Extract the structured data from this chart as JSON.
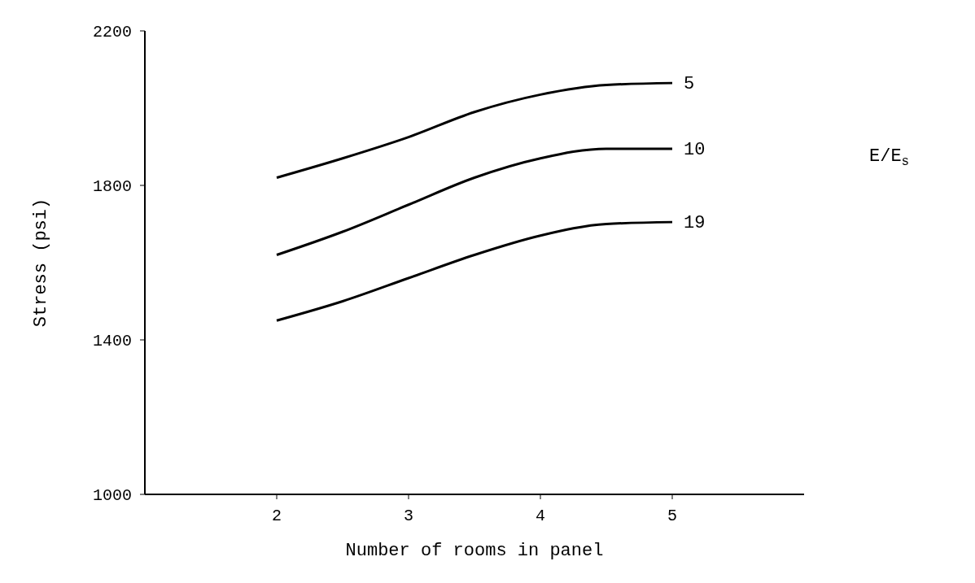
{
  "chart_data": {
    "type": "line",
    "xlabel": "Number of rooms in panel",
    "ylabel": "Stress (psi)",
    "legend_title": "E/E$_{s}$",
    "x": [
      2,
      2.5,
      3,
      3.5,
      4,
      4.5,
      5
    ],
    "series": [
      {
        "name": "5",
        "color": "#000000",
        "values": [
          1820,
          1870,
          1925,
          1990,
          2035,
          2060,
          2065
        ]
      },
      {
        "name": "10",
        "color": "#000000",
        "values": [
          1620,
          1680,
          1750,
          1820,
          1870,
          1895,
          1895
        ]
      },
      {
        "name": "19",
        "color": "#000000",
        "values": [
          1450,
          1500,
          1560,
          1620,
          1670,
          1700,
          1705
        ]
      }
    ],
    "xlim": [
      1,
      6
    ],
    "xticks": [
      2,
      3,
      4,
      5
    ],
    "ylim": [
      1000,
      2200
    ],
    "yticks": [
      1000,
      1400,
      1800,
      2200
    ],
    "grid": false,
    "legend": false,
    "marker": "none",
    "line_style": "solid"
  }
}
